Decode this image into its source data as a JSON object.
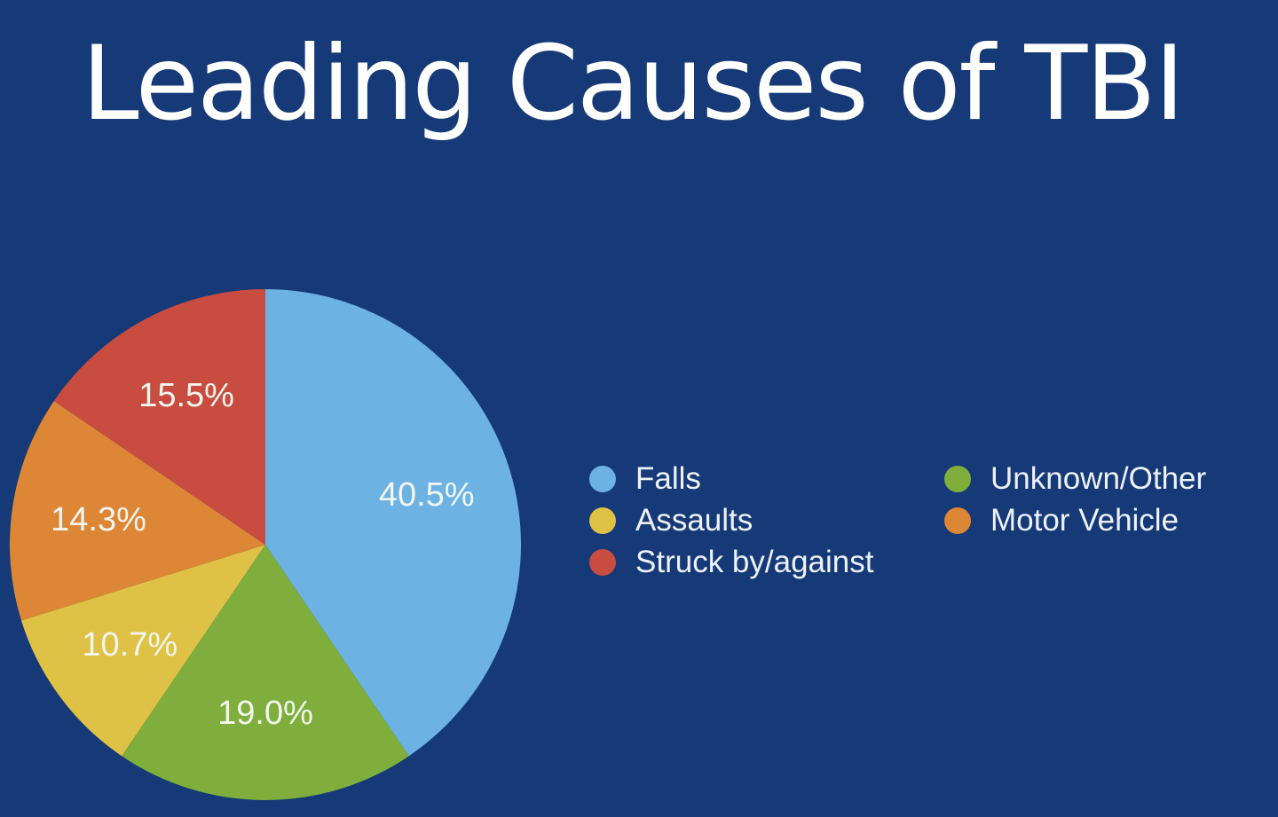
{
  "slide": {
    "title": "Leading Causes of TBI"
  },
  "chart_data": {
    "type": "pie",
    "title": "Leading Causes of TBI",
    "start_angle_deg": 0,
    "direction": "clockwise",
    "slices": [
      {
        "label": "Falls",
        "value": 40.5,
        "display": "40.5%",
        "color": "#6cb3e3"
      },
      {
        "label": "Unknown/Other",
        "value": 19.0,
        "display": "19.0%",
        "color": "#7fae3c"
      },
      {
        "label": "Assaults",
        "value": 10.7,
        "display": "10.7%",
        "color": "#dfc245"
      },
      {
        "label": "Motor Vehicle",
        "value": 14.3,
        "display": "14.3%",
        "color": "#dc8636"
      },
      {
        "label": "Struck by/against",
        "value": 15.5,
        "display": "15.5%",
        "color": "#c84c3f"
      }
    ],
    "legend": {
      "placement": "right",
      "items": [
        "Falls",
        "Unknown/Other",
        "Assaults",
        "Motor Vehicle",
        "Struck by/against"
      ]
    }
  }
}
